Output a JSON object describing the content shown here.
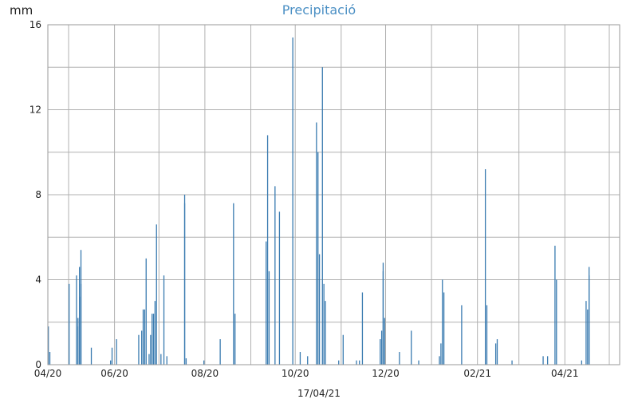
{
  "chart_data": {
    "type": "bar",
    "title": "Precipitació",
    "ylabel": "mm",
    "xlabel": "",
    "footer_date": "17/04/21",
    "ylim": [
      0,
      16
    ],
    "yticks": [
      0,
      4,
      8,
      12,
      16
    ],
    "xlim": [
      "2020-04-17",
      "2021-05-08"
    ],
    "xticks": [
      {
        "date": "2020-04-01",
        "label": "04/20"
      },
      {
        "date": "2020-06-01",
        "label": "06/20"
      },
      {
        "date": "2020-08-01",
        "label": "08/20"
      },
      {
        "date": "2020-10-01",
        "label": "10/20"
      },
      {
        "date": "2020-12-01",
        "label": "12/20"
      },
      {
        "date": "2021-02-01",
        "label": "02/21"
      },
      {
        "date": "2021-04-01",
        "label": "04/21"
      }
    ],
    "minor_grid_dates": [
      "2020-05-01",
      "2020-07-01",
      "2020-09-01",
      "2020-11-01",
      "2021-01-01",
      "2021-03-01",
      "2021-05-01"
    ],
    "grid": true,
    "bar_color": "#3a7bb0",
    "series": [
      {
        "values": [
          [
            "2020-04-17",
            1.8
          ],
          [
            "2020-04-18",
            0.6
          ],
          [
            "2020-05-01",
            3.8
          ],
          [
            "2020-05-06",
            4.2
          ],
          [
            "2020-05-07",
            1.8
          ],
          [
            "2020-05-07",
            2.2
          ],
          [
            "2020-05-08",
            3.2
          ],
          [
            "2020-05-08",
            4.6
          ],
          [
            "2020-05-09",
            5.4
          ],
          [
            "2020-05-09",
            3.8
          ],
          [
            "2020-05-16",
            0.8
          ],
          [
            "2020-05-29",
            0.2
          ],
          [
            "2020-05-30",
            0.8
          ],
          [
            "2020-06-02",
            1.2
          ],
          [
            "2020-06-17",
            1.4
          ],
          [
            "2020-06-19",
            1.6
          ],
          [
            "2020-06-20",
            2.6
          ],
          [
            "2020-06-21",
            2.6
          ],
          [
            "2020-06-22",
            5.0
          ],
          [
            "2020-06-24",
            0.5
          ],
          [
            "2020-06-25",
            1.4
          ],
          [
            "2020-06-26",
            2.4
          ],
          [
            "2020-06-27",
            2.4
          ],
          [
            "2020-06-28",
            3.0
          ],
          [
            "2020-06-29",
            6.6
          ],
          [
            "2020-07-02",
            0.5
          ],
          [
            "2020-07-04",
            4.2
          ],
          [
            "2020-07-06",
            0.4
          ],
          [
            "2020-07-18",
            8.0
          ],
          [
            "2020-07-18",
            7.6
          ],
          [
            "2020-07-19",
            0.3
          ],
          [
            "2020-07-31",
            0.2
          ],
          [
            "2020-08-11",
            1.2
          ],
          [
            "2020-08-20",
            7.6
          ],
          [
            "2020-08-21",
            2.4
          ],
          [
            "2020-09-11",
            5.8
          ],
          [
            "2020-09-12",
            10.8
          ],
          [
            "2020-09-13",
            4.4
          ],
          [
            "2020-09-17",
            8.4
          ],
          [
            "2020-09-20",
            7.2
          ],
          [
            "2020-09-29",
            15.4
          ],
          [
            "2020-10-04",
            0.6
          ],
          [
            "2020-10-09",
            0.4
          ],
          [
            "2020-10-15",
            11.4
          ],
          [
            "2020-10-16",
            10.0
          ],
          [
            "2020-10-17",
            5.2
          ],
          [
            "2020-10-19",
            14.0
          ],
          [
            "2020-10-20",
            3.8
          ],
          [
            "2020-10-21",
            3.0
          ],
          [
            "2020-10-30",
            0.2
          ],
          [
            "2020-11-02",
            1.4
          ],
          [
            "2020-11-11",
            0.2
          ],
          [
            "2020-11-13",
            0.2
          ],
          [
            "2020-11-15",
            3.4
          ],
          [
            "2020-11-27",
            1.2
          ],
          [
            "2020-11-28",
            1.6
          ],
          [
            "2020-11-29",
            4.8
          ],
          [
            "2020-11-29",
            4.4
          ],
          [
            "2020-11-30",
            2.2
          ],
          [
            "2020-12-10",
            0.6
          ],
          [
            "2020-12-18",
            1.6
          ],
          [
            "2020-12-23",
            0.2
          ],
          [
            "2021-01-06",
            0.4
          ],
          [
            "2021-01-07",
            1.0
          ],
          [
            "2021-01-08",
            4.0
          ],
          [
            "2021-01-09",
            3.4
          ],
          [
            "2021-01-21",
            2.8
          ],
          [
            "2021-02-06",
            9.2
          ],
          [
            "2021-02-07",
            2.8
          ],
          [
            "2021-02-13",
            1.0
          ],
          [
            "2021-02-14",
            1.2
          ],
          [
            "2021-02-24",
            0.2
          ],
          [
            "2021-03-17",
            0.4
          ],
          [
            "2021-03-20",
            0.4
          ],
          [
            "2021-03-25",
            5.6
          ],
          [
            "2021-03-26",
            4.0
          ],
          [
            "2021-04-12",
            0.2
          ],
          [
            "2021-04-15",
            3.0
          ],
          [
            "2021-04-16",
            2.6
          ],
          [
            "2021-04-17",
            4.6
          ],
          [
            "2021-04-17",
            4.2
          ]
        ]
      }
    ]
  }
}
